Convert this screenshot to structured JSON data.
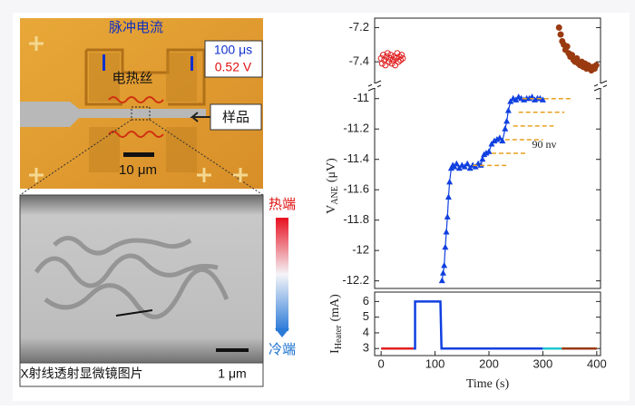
{
  "image_panel": {
    "pulse_title": "脉冲电流",
    "pulse_width": "100 μs",
    "pulse_voltage": "0.52 V",
    "heater": "电热丝",
    "sample": "样品",
    "scale_chip": "10 μm",
    "hot_end": "热端",
    "cold_end": "冷端",
    "caption": "X射线透射显微镜图片",
    "scale_xray": "1 μm"
  },
  "chart_data": [
    {
      "type": "scatter",
      "xlim": [
        -12,
        407
      ],
      "ylim": [
        -7.5,
        -7.15
      ],
      "yticks": [
        -7.2,
        -7.4
      ],
      "series": [
        {
          "color": "#e02020",
          "marker": "open-circle",
          "x": [
            0,
            2,
            4,
            6,
            8,
            10,
            12,
            14,
            16,
            18,
            20,
            22,
            24,
            26,
            28,
            30,
            32,
            34,
            36,
            38,
            40
          ],
          "values": [
            -7.38,
            -7.41,
            -7.36,
            -7.39,
            -7.42,
            -7.37,
            -7.35,
            -7.4,
            -7.38,
            -7.36,
            -7.41,
            -7.39,
            -7.37,
            -7.42,
            -7.38,
            -7.35,
            -7.4,
            -7.37,
            -7.39,
            -7.36,
            -7.38
          ]
        },
        {
          "color": "#9a3a10",
          "marker": "filled-circle",
          "x": [
            330,
            333,
            336,
            339,
            342,
            345,
            348,
            351,
            354,
            357,
            360,
            363,
            366,
            369,
            372,
            375,
            378,
            381,
            384,
            387,
            390,
            393,
            396,
            399
          ],
          "values": [
            -7.2,
            -7.24,
            -7.28,
            -7.3,
            -7.33,
            -7.31,
            -7.35,
            -7.37,
            -7.36,
            -7.39,
            -7.4,
            -7.38,
            -7.41,
            -7.42,
            -7.4,
            -7.43,
            -7.41,
            -7.44,
            -7.42,
            -7.43,
            -7.45,
            -7.43,
            -7.44,
            -7.42
          ]
        }
      ]
    },
    {
      "type": "line",
      "xlim": [
        -12,
        407
      ],
      "ylim": [
        -12.25,
        -10.9
      ],
      "yticks": [
        -11.0,
        -11.2,
        -11.4,
        -11.6,
        -11.8,
        -12.0,
        -12.2
      ],
      "ylabel": "V",
      "ylabel_sub": "ANE",
      "ylabel_unit": "(μV)",
      "annotation": "90 nv",
      "series": [
        {
          "color": "#1040e0",
          "marker": "triangle",
          "x": [
            113,
            115,
            117,
            119,
            121,
            123,
            125,
            127,
            130,
            133,
            136,
            140,
            145,
            150,
            155,
            160,
            165,
            170,
            175,
            180,
            185,
            188,
            191,
            195,
            200,
            205,
            210,
            215,
            220,
            225,
            230,
            233,
            236,
            240,
            245,
            250,
            255,
            260,
            265,
            270,
            275,
            280,
            285,
            290,
            295,
            300
          ],
          "values": [
            -12.2,
            -12.15,
            -12.1,
            -11.98,
            -11.88,
            -11.78,
            -11.65,
            -11.55,
            -11.46,
            -11.44,
            -11.45,
            -11.43,
            -11.46,
            -11.44,
            -11.45,
            -11.43,
            -11.46,
            -11.44,
            -11.45,
            -11.43,
            -11.44,
            -11.4,
            -11.37,
            -11.36,
            -11.35,
            -11.3,
            -11.28,
            -11.27,
            -11.26,
            -11.28,
            -11.2,
            -11.15,
            -11.08,
            -11.02,
            -11.0,
            -11.01,
            -10.99,
            -11.0,
            -11.01,
            -11.0,
            -11.0,
            -10.99,
            -11.01,
            -11.0,
            -11.0,
            -11.01
          ]
        },
        {
          "color": "#e8a020",
          "dashed": true,
          "x": [
            262,
            355
          ],
          "values": [
            -11.0,
            -11.0
          ]
        },
        {
          "color": "#e8a020",
          "dashed": true,
          "x": [
            255,
            340
          ],
          "values": [
            -11.09,
            -11.09
          ]
        },
        {
          "color": "#e8a020",
          "dashed": true,
          "x": [
            245,
            320
          ],
          "values": [
            -11.18,
            -11.18
          ]
        },
        {
          "color": "#e8a020",
          "dashed": true,
          "x": [
            230,
            300
          ],
          "values": [
            -11.27,
            -11.27
          ]
        },
        {
          "color": "#e8a020",
          "dashed": true,
          "x": [
            205,
            270
          ],
          "values": [
            -11.36,
            -11.36
          ]
        },
        {
          "color": "#e8a020",
          "dashed": true,
          "x": [
            170,
            235
          ],
          "values": [
            -11.44,
            -11.44
          ]
        }
      ]
    },
    {
      "type": "line",
      "xlim": [
        -12,
        407
      ],
      "ylim": [
        2.55,
        6.6
      ],
      "yticks": [
        3,
        4,
        5,
        6
      ],
      "xticks": [
        0,
        100,
        200,
        300,
        400
      ],
      "xlabel": "Time (s)",
      "ylabel": "I",
      "ylabel_sub": "Heater",
      "ylabel_unit": "(mA)",
      "series": [
        {
          "color": "#e02020",
          "x": [
            0,
            60
          ],
          "values": [
            3,
            3
          ]
        },
        {
          "color": "#1040e0",
          "x": [
            60,
            63,
            63,
            110,
            112,
            300
          ],
          "values": [
            3,
            3,
            6,
            6,
            3,
            3
          ]
        },
        {
          "color": "#20c8d0",
          "x": [
            300,
            335
          ],
          "values": [
            3,
            3
          ]
        },
        {
          "color": "#9a3a10",
          "x": [
            335,
            400
          ],
          "values": [
            3,
            3
          ]
        }
      ]
    }
  ]
}
